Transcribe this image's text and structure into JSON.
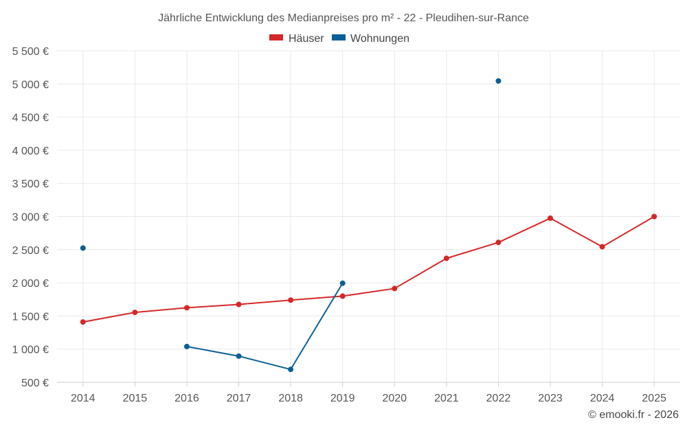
{
  "chart_data": {
    "type": "line",
    "title": "Jährliche Entwicklung des Medianpreises pro m² - 22 - Pleudihen-sur-Rance",
    "x": [
      "2014",
      "2015",
      "2016",
      "2017",
      "2018",
      "2019",
      "2020",
      "2021",
      "2022",
      "2023",
      "2024",
      "2025"
    ],
    "series": [
      {
        "name": "Häuser",
        "color": "#d62728",
        "values": [
          1410,
          1555,
          1625,
          1675,
          1740,
          1800,
          1915,
          2370,
          2610,
          2975,
          2545,
          3000
        ]
      },
      {
        "name": "Wohnungen",
        "color": "#0b5f98",
        "values": [
          2525,
          null,
          1040,
          895,
          695,
          1995,
          null,
          null,
          5045,
          null,
          null,
          null
        ]
      }
    ],
    "ylim": [
      500,
      5500
    ],
    "yticks": [
      500,
      1000,
      1500,
      2000,
      2500,
      3000,
      3500,
      4000,
      4500,
      5000,
      5500
    ],
    "ytick_labels": [
      "500 €",
      "1 000 €",
      "1 500 €",
      "2 000 €",
      "2 500 €",
      "3 000 €",
      "3 500 €",
      "4 000 €",
      "4 500 €",
      "5 000 €",
      "5 500 €"
    ],
    "legend_position": "top-center",
    "grid": true
  },
  "credit": "© emooki.fr - 2026"
}
